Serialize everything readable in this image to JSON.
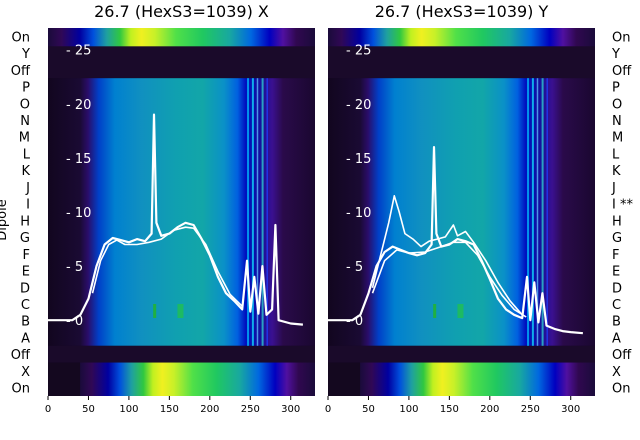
{
  "chart_data": [
    {
      "type": "heatmap",
      "title": "26.7 (HexS3=1039) X",
      "ylabel": "Dipole",
      "xlim": [
        0,
        330
      ],
      "ylim": [
        -7,
        27
      ],
      "xticks": [
        0,
        50,
        100,
        150,
        200,
        250,
        300
      ],
      "yticks": [
        0,
        5,
        10,
        15,
        20,
        25
      ],
      "row_labels_top_to_bottom": [
        "On",
        "Y",
        "Off",
        "P",
        "O",
        "N",
        "M",
        "L",
        "K",
        "J",
        "I",
        "H",
        "G",
        "F",
        "E",
        "D",
        "C",
        "B",
        "A",
        "Off",
        "X",
        "On"
      ],
      "series": [
        {
          "values": [
            [
              0,
              0
            ],
            [
              30,
              0
            ],
            [
              40,
              0.5
            ],
            [
              50,
              2
            ],
            [
              60,
              5
            ],
            [
              70,
              7
            ],
            [
              80,
              7.6
            ],
            [
              90,
              7.4
            ],
            [
              100,
              7.2
            ],
            [
              110,
              7.5
            ],
            [
              120,
              7.3
            ],
            [
              128,
              8
            ],
            [
              131,
              19
            ],
            [
              134,
              9
            ],
            [
              140,
              7.8
            ],
            [
              150,
              8
            ],
            [
              160,
              8.6
            ],
            [
              170,
              9
            ],
            [
              180,
              8.8
            ],
            [
              190,
              7.5
            ],
            [
              200,
              6
            ],
            [
              210,
              4
            ],
            [
              220,
              2.5
            ],
            [
              230,
              1.8
            ],
            [
              240,
              1
            ],
            [
              246,
              5.5
            ],
            [
              250,
              0.8
            ],
            [
              255,
              4
            ],
            [
              260,
              0.6
            ],
            [
              265,
              5
            ],
            [
              270,
              0.5
            ],
            [
              277,
              1
            ],
            [
              281,
              8.8
            ],
            [
              285,
              0
            ],
            [
              300,
              -0.3
            ],
            [
              315,
              -0.4
            ]
          ]
        },
        {
          "values": [
            [
              55,
              2.5
            ],
            [
              65,
              5.5
            ],
            [
              75,
              7
            ],
            [
              85,
              7.4
            ],
            [
              95,
              7
            ],
            [
              110,
              7
            ],
            [
              125,
              7.2
            ],
            [
              140,
              7.5
            ],
            [
              155,
              8.3
            ],
            [
              170,
              8.6
            ],
            [
              180,
              8.5
            ],
            [
              195,
              7
            ],
            [
              210,
              4.5
            ],
            [
              225,
              2.4
            ],
            [
              240,
              1.3
            ]
          ]
        }
      ]
    },
    {
      "type": "heatmap",
      "title": "26.7 (HexS3=1039) Y",
      "xlim": [
        0,
        330
      ],
      "ylim": [
        -7,
        27
      ],
      "xticks": [
        0,
        50,
        100,
        150,
        200,
        250,
        300
      ],
      "yticks": [
        0,
        5,
        10,
        15,
        20,
        25
      ],
      "row_labels_top_to_bottom": [
        "On",
        "Y",
        "Off",
        "P",
        "O",
        "N",
        "M",
        "L",
        "K",
        "J",
        "I **",
        "H",
        "G",
        "F",
        "E",
        "D",
        "C",
        "B",
        "A",
        "Off",
        "X",
        "On"
      ],
      "series": [
        {
          "values": [
            [
              0,
              0
            ],
            [
              30,
              0
            ],
            [
              40,
              0.5
            ],
            [
              50,
              2.5
            ],
            [
              60,
              5
            ],
            [
              70,
              6.3
            ],
            [
              80,
              6.8
            ],
            [
              90,
              6.5
            ],
            [
              100,
              6.2
            ],
            [
              110,
              6
            ],
            [
              120,
              6.2
            ],
            [
              128,
              7
            ],
            [
              131,
              16
            ],
            [
              134,
              8
            ],
            [
              140,
              6.8
            ],
            [
              150,
              7
            ],
            [
              160,
              7.5
            ],
            [
              170,
              7.3
            ],
            [
              180,
              7
            ],
            [
              190,
              5.5
            ],
            [
              200,
              3.8
            ],
            [
              210,
              2
            ],
            [
              220,
              1
            ],
            [
              230,
              0.5
            ],
            [
              240,
              0.2
            ],
            [
              246,
              4
            ],
            [
              250,
              0
            ],
            [
              255,
              3.5
            ],
            [
              260,
              -0.2
            ],
            [
              265,
              2.5
            ],
            [
              270,
              -0.5
            ],
            [
              280,
              -0.8
            ],
            [
              290,
              -1
            ],
            [
              300,
              -1.1
            ],
            [
              315,
              -1.2
            ]
          ]
        },
        {
          "values": [
            [
              55,
              3
            ],
            [
              65,
              6
            ],
            [
              75,
              9
            ],
            [
              82,
              11.5
            ],
            [
              88,
              10
            ],
            [
              95,
              8
            ],
            [
              105,
              7.5
            ],
            [
              115,
              6.8
            ],
            [
              125,
              7.3
            ],
            [
              135,
              7.5
            ],
            [
              145,
              7.7
            ],
            [
              155,
              8.8
            ],
            [
              160,
              7.8
            ],
            [
              170,
              8.2
            ],
            [
              180,
              7.2
            ],
            [
              195,
              5.5
            ],
            [
              210,
              3.5
            ],
            [
              225,
              1.8
            ],
            [
              240,
              0.5
            ]
          ]
        },
        {
          "values": [
            [
              55,
              2.5
            ],
            [
              70,
              5.5
            ],
            [
              85,
              6.5
            ],
            [
              100,
              6.2
            ],
            [
              120,
              6.3
            ],
            [
              140,
              6.8
            ],
            [
              155,
              7.2
            ],
            [
              170,
              7.2
            ],
            [
              185,
              6
            ],
            [
              200,
              4
            ],
            [
              215,
              2.3
            ],
            [
              230,
              1
            ],
            [
              245,
              0.3
            ]
          ]
        }
      ]
    }
  ]
}
